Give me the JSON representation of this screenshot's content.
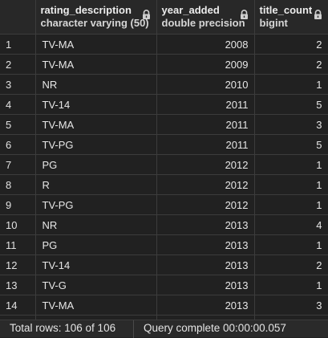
{
  "columns": [
    {
      "name": "",
      "type": ""
    },
    {
      "name": "rating_description",
      "type": "character varying (50)"
    },
    {
      "name": "year_added",
      "type": "double precision"
    },
    {
      "name": "title_count",
      "type": "bigint"
    }
  ],
  "rows": [
    {
      "idx": "1",
      "rating": "TV-MA",
      "year": "2008",
      "count": "2"
    },
    {
      "idx": "2",
      "rating": "TV-MA",
      "year": "2009",
      "count": "2"
    },
    {
      "idx": "3",
      "rating": "NR",
      "year": "2010",
      "count": "1"
    },
    {
      "idx": "4",
      "rating": "TV-14",
      "year": "2011",
      "count": "5"
    },
    {
      "idx": "5",
      "rating": "TV-MA",
      "year": "2011",
      "count": "3"
    },
    {
      "idx": "6",
      "rating": "TV-PG",
      "year": "2011",
      "count": "5"
    },
    {
      "idx": "7",
      "rating": "PG",
      "year": "2012",
      "count": "1"
    },
    {
      "idx": "8",
      "rating": "R",
      "year": "2012",
      "count": "1"
    },
    {
      "idx": "9",
      "rating": "TV-PG",
      "year": "2012",
      "count": "1"
    },
    {
      "idx": "10",
      "rating": "NR",
      "year": "2013",
      "count": "4"
    },
    {
      "idx": "11",
      "rating": "PG",
      "year": "2013",
      "count": "1"
    },
    {
      "idx": "12",
      "rating": "TV-14",
      "year": "2013",
      "count": "2"
    },
    {
      "idx": "13",
      "rating": "TV-G",
      "year": "2013",
      "count": "1"
    },
    {
      "idx": "14",
      "rating": "TV-MA",
      "year": "2013",
      "count": "3"
    },
    {
      "idx": "",
      "rating": "",
      "year": "",
      "count": ""
    }
  ],
  "status": {
    "total_rows": "Total rows: 106 of 106",
    "query": "Query complete 00:00:00.057"
  },
  "icons": {
    "lock": "lock-icon"
  }
}
